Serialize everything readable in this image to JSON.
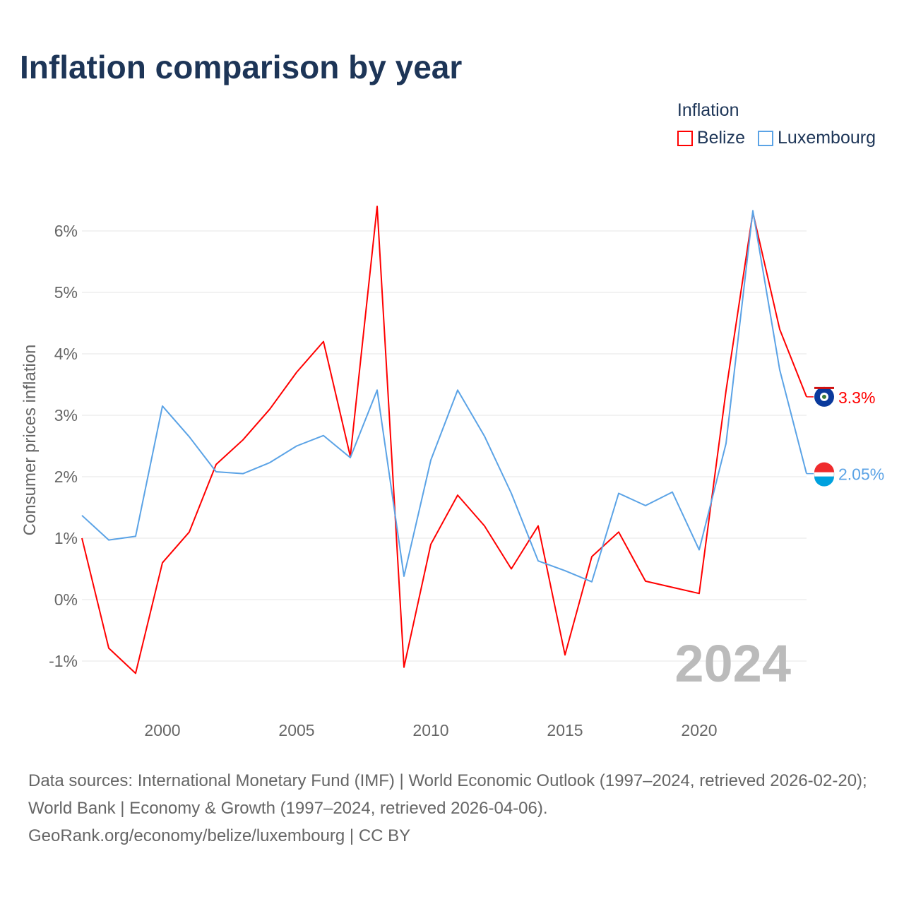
{
  "chart_data": {
    "type": "line",
    "title": "Inflation comparison by year",
    "xlabel": "",
    "ylabel": "Consumer prices inflation",
    "legend_title": "Inflation",
    "legend_position": "top-right",
    "grid": true,
    "xlim": [
      1997,
      2024
    ],
    "ylim": [
      -1.5,
      6.5
    ],
    "x_ticks": [
      2000,
      2005,
      2010,
      2015,
      2020
    ],
    "y_ticks": [
      -1,
      0,
      1,
      2,
      3,
      4,
      5,
      6
    ],
    "y_tick_labels": [
      "-1%",
      "0%",
      "1%",
      "2%",
      "3%",
      "4%",
      "5%",
      "6%"
    ],
    "x": [
      1997,
      1998,
      1999,
      2000,
      2001,
      2002,
      2003,
      2004,
      2005,
      2006,
      2007,
      2008,
      2009,
      2010,
      2011,
      2012,
      2013,
      2014,
      2015,
      2016,
      2017,
      2018,
      2019,
      2020,
      2021,
      2022,
      2023,
      2024
    ],
    "series": [
      {
        "name": "Belize",
        "color": "#ff0000",
        "end_label": "3.3%",
        "values": [
          1.0,
          -0.79,
          -1.2,
          0.6,
          1.1,
          2.2,
          2.6,
          3.1,
          3.7,
          4.2,
          2.33,
          6.4,
          -1.1,
          0.9,
          1.7,
          1.2,
          0.5,
          1.2,
          -0.9,
          0.7,
          1.1,
          0.3,
          0.2,
          0.1,
          3.4,
          6.3,
          4.4,
          3.3
        ]
      },
      {
        "name": "Luxembourg",
        "color": "#5ba3e6",
        "end_label": "2.05%",
        "values": [
          1.37,
          0.97,
          1.03,
          3.15,
          2.65,
          2.08,
          2.05,
          2.23,
          2.5,
          2.67,
          2.31,
          3.41,
          0.38,
          2.27,
          3.41,
          2.66,
          1.73,
          0.63,
          0.47,
          0.29,
          1.73,
          1.53,
          1.75,
          0.81,
          2.54,
          6.33,
          3.74,
          2.05
        ]
      }
    ],
    "annotation": "2024"
  },
  "footer": {
    "sources": "Data sources: International Monetary Fund (IMF) | World Economic Outlook (1997–2024, retrieved 2026-02-20); World Bank | Economy & Growth (1997–2024, retrieved 2026-04-06).",
    "credit": "GeoRank.org/economy/belize/luxembourg | CC BY"
  }
}
